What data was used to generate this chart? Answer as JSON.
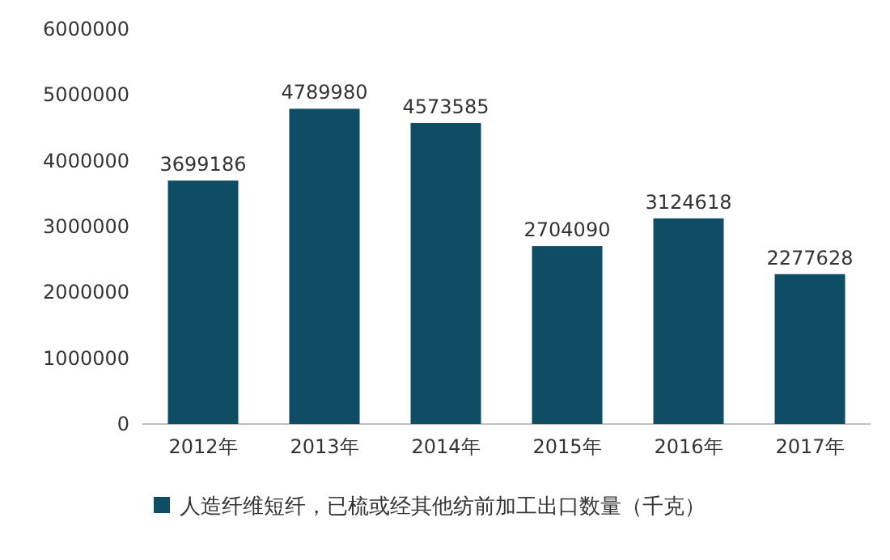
{
  "chart_data": {
    "type": "bar",
    "categories": [
      "2012年",
      "2013年",
      "2014年",
      "2015年",
      "2016年",
      "2017年"
    ],
    "series": [
      {
        "name": "人造纤维短纤，已梳或经其他纺前加工出口数量（千克）",
        "color": "#0e4d64",
        "values": [
          3699186,
          4789980,
          4573585,
          2704090,
          3124618,
          2277628
        ]
      }
    ],
    "ylim": [
      0,
      6000000
    ],
    "yticks": [
      0,
      1000000,
      2000000,
      3000000,
      4000000,
      5000000,
      6000000
    ],
    "data_labels": true,
    "legend": "bottom",
    "grid": false
  }
}
